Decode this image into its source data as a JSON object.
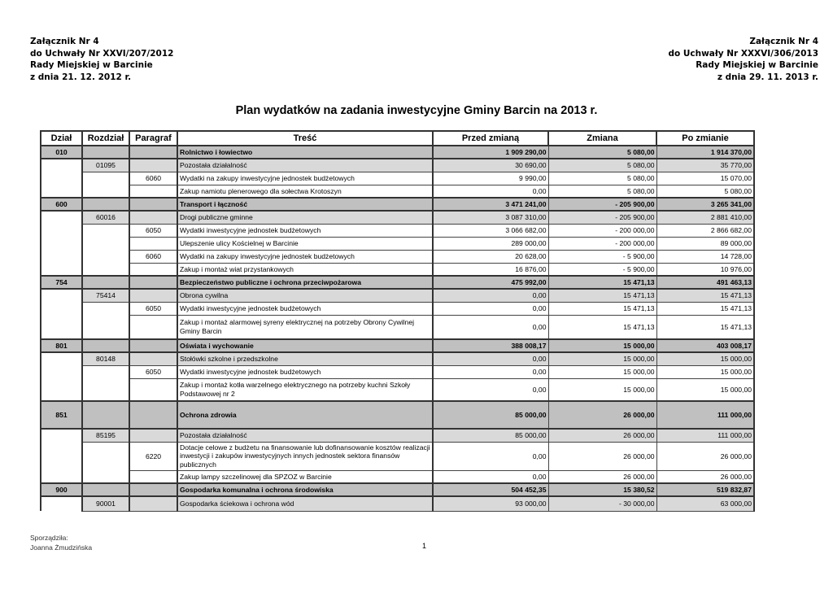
{
  "header_left": [
    "Załącznik Nr 4",
    "do Uchwały Nr XXVI/207/2012",
    "Rady Miejskiej w Barcinie",
    "z dnia 21. 12. 2012 r."
  ],
  "header_right": [
    "Załącznik Nr 4",
    "do Uchwały Nr XXXVI/306/2013",
    "Rady Miejskiej w Barcinie",
    "z dnia 29. 11. 2013 r."
  ],
  "title": "Plan wydatków na zadania inwestycyjne Gminy Barcin na 2013 r.",
  "columns": [
    "Dział",
    "Rozdział",
    "Paragraf",
    "Treść",
    "Przed zmianą",
    "Zmiana",
    "Po zmianie"
  ],
  "rows": [
    {
      "type": "section",
      "dzial": "010",
      "rozdzial": "",
      "paragraf": "",
      "tresc": "Rolnictwo i łowiectwo",
      "przed": "1 909 290,00",
      "zmiana": "5 080,00",
      "po": "1 914 370,00"
    },
    {
      "type": "chapter",
      "dzial": "",
      "rozdzial": "01095",
      "paragraf": "",
      "tresc": "Pozostała działalność",
      "przed": "30 690,00",
      "zmiana": "5 080,00",
      "po": "35 770,00"
    },
    {
      "type": "para",
      "dzial": "",
      "rozdzial": "",
      "paragraf": "6060",
      "tresc": "Wydatki na zakupy inwestycyjne jednostek budżetowych",
      "przed": "9 990,00",
      "zmiana": "5 080,00",
      "po": "15 070,00"
    },
    {
      "type": "item",
      "dzial": "",
      "rozdzial": "",
      "paragraf": "",
      "tresc": "Zakup namiotu plenerowego dla sołectwa Krotoszyn",
      "przed": "0,00",
      "zmiana": "5 080,00",
      "po": "5 080,00"
    },
    {
      "type": "section",
      "dzial": "600",
      "rozdzial": "",
      "paragraf": "",
      "tresc": "Transport i łączność",
      "przed": "3 471 241,00",
      "zmiana": "- 205 900,00",
      "po": "3 265 341,00"
    },
    {
      "type": "chapter",
      "dzial": "",
      "rozdzial": "60016",
      "paragraf": "",
      "tresc": "Drogi publiczne gminne",
      "przed": "3 087 310,00",
      "zmiana": "- 205 900,00",
      "po": "2 881 410,00"
    },
    {
      "type": "para",
      "dzial": "",
      "rozdzial": "",
      "paragraf": "6050",
      "tresc": "Wydatki inwestycyjne jednostek budżetowych",
      "przed": "3 066 682,00",
      "zmiana": "- 200 000,00",
      "po": "2 866 682,00"
    },
    {
      "type": "item",
      "dzial": "",
      "rozdzial": "",
      "paragraf": "",
      "tresc": "Ulepszenie ulicy Kościelnej w Barcinie",
      "przed": "289 000,00",
      "zmiana": "- 200 000,00",
      "po": "89 000,00"
    },
    {
      "type": "para",
      "dzial": "",
      "rozdzial": "",
      "paragraf": "6060",
      "tresc": "Wydatki na zakupy inwestycyjne jednostek budżetowych",
      "przed": "20 628,00",
      "zmiana": "- 5 900,00",
      "po": "14 728,00"
    },
    {
      "type": "item",
      "dzial": "",
      "rozdzial": "",
      "paragraf": "",
      "tresc": "Zakup i montaż wiat przystankowych",
      "przed": "16 876,00",
      "zmiana": "- 5 900,00",
      "po": "10 976,00"
    },
    {
      "type": "section",
      "dzial": "754",
      "rozdzial": "",
      "paragraf": "",
      "tresc": "Bezpieczeństwo publiczne i ochrona przeciwpożarowa",
      "przed": "475 992,00",
      "zmiana": "15 471,13",
      "po": "491 463,13"
    },
    {
      "type": "chapter",
      "dzial": "",
      "rozdzial": "75414",
      "paragraf": "",
      "tresc": "Obrona cywilna",
      "przed": "0,00",
      "zmiana": "15 471,13",
      "po": "15 471,13"
    },
    {
      "type": "para",
      "dzial": "",
      "rozdzial": "",
      "paragraf": "6050",
      "tresc": "Wydatki inwestycyjne jednostek budżetowych",
      "przed": "0,00",
      "zmiana": "15 471,13",
      "po": "15 471,13"
    },
    {
      "type": "item",
      "h": 30,
      "dzial": "",
      "rozdzial": "",
      "paragraf": "",
      "tresc": "Zakup i montaż alarmowej syreny elektrycznej na potrzeby Obrony Cywilnej Gminy Barcin",
      "przed": "0,00",
      "zmiana": "15 471,13",
      "po": "15 471,13"
    },
    {
      "type": "section",
      "dzial": "801",
      "rozdzial": "",
      "paragraf": "",
      "tresc": "Oświata i wychowanie",
      "przed": "388 008,17",
      "zmiana": "15 000,00",
      "po": "403 008,17"
    },
    {
      "type": "chapter",
      "dzial": "",
      "rozdzial": "80148",
      "paragraf": "",
      "tresc": "Stołówki szkolne i przedszkolne",
      "przed": "0,00",
      "zmiana": "15 000,00",
      "po": "15 000,00"
    },
    {
      "type": "para",
      "dzial": "",
      "rozdzial": "",
      "paragraf": "6050",
      "tresc": "Wydatki inwestycyjne jednostek budżetowych",
      "przed": "0,00",
      "zmiana": "15 000,00",
      "po": "15 000,00"
    },
    {
      "type": "item",
      "h": 28,
      "dzial": "",
      "rozdzial": "",
      "paragraf": "",
      "tresc": "Zakup i montaż kotła warzelnego elektrycznego na potrzeby kuchni Szkoły Podstawowej nr 2",
      "przed": "0,00",
      "zmiana": "15 000,00",
      "po": "15 000,00"
    },
    {
      "type": "section",
      "h": 34,
      "dzial": "851",
      "rozdzial": "",
      "paragraf": "",
      "tresc": "Ochrona zdrowia",
      "przed": "85 000,00",
      "zmiana": "26 000,00",
      "po": "111 000,00"
    },
    {
      "type": "chapter",
      "dzial": "",
      "rozdzial": "85195",
      "paragraf": "",
      "tresc": "Pozostała działalność",
      "przed": "85 000,00",
      "zmiana": "26 000,00",
      "po": "111 000,00"
    },
    {
      "type": "para",
      "h": 35,
      "dzial": "",
      "rozdzial": "",
      "paragraf": "6220",
      "tresc": "Dotacje celowe z budżetu na finansowanie lub dofinansowanie kosztów realizacji inwestycji i zakupów inwestycyjnych innych jednostek sektora finansów publicznych",
      "przed": "0,00",
      "zmiana": "26 000,00",
      "po": "26 000,00"
    },
    {
      "type": "item",
      "dzial": "",
      "rozdzial": "",
      "paragraf": "",
      "tresc": "Zakup lampy szczelinowej dla SPZOZ w Barcinie",
      "przed": "0,00",
      "zmiana": "26 000,00",
      "po": "26 000,00"
    },
    {
      "type": "section",
      "dzial": "900",
      "rozdzial": "",
      "paragraf": "",
      "tresc": "Gospodarka komunalna i ochrona środowiska",
      "przed": "504 452,35",
      "zmiana": "15 380,52",
      "po": "519 832,87"
    },
    {
      "type": "chapter",
      "h": 18,
      "dzial": "",
      "rozdzial": "90001",
      "paragraf": "",
      "tresc": "Gospodarka ściekowa i ochrona wód",
      "przed": "93 000,00",
      "zmiana": "- 30 000,00",
      "po": "63 000,00"
    }
  ],
  "footer": {
    "label": "Sporządziła:",
    "name": "Joanna Żmudzińska",
    "page": "1"
  }
}
